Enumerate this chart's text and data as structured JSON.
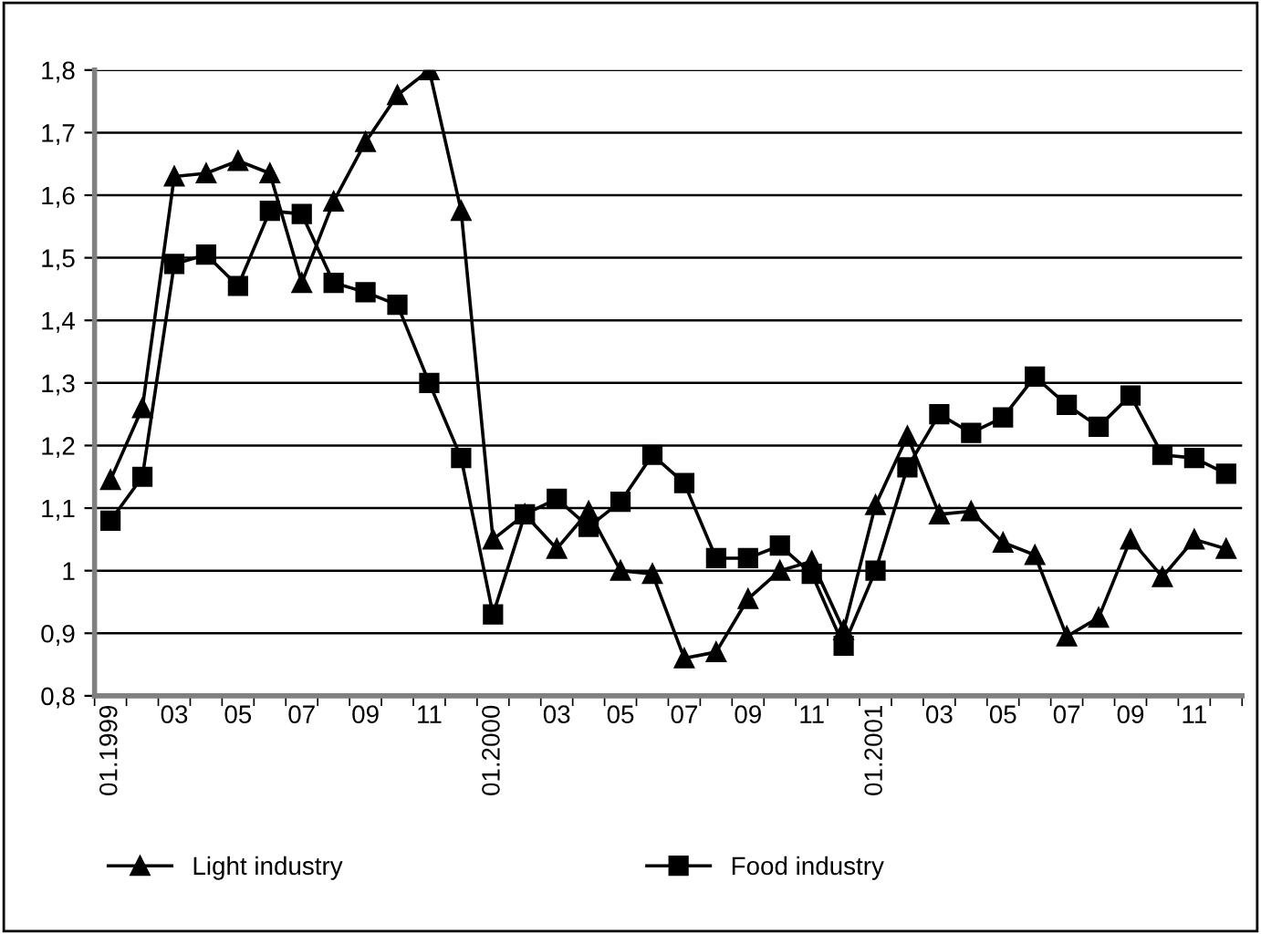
{
  "chart_data": {
    "type": "line",
    "categories": [
      "01.1999",
      null,
      "03",
      null,
      "05",
      null,
      "07",
      null,
      "09",
      null,
      "11",
      null,
      "01.2000",
      null,
      "03",
      null,
      "05",
      null,
      "07",
      null,
      "09",
      null,
      "11",
      null,
      "01.2001",
      null,
      "03",
      null,
      "05",
      null,
      "07",
      null,
      "09",
      null,
      "11",
      null
    ],
    "series": [
      {
        "name": "Light industry",
        "color": "#000000",
        "marker": "triangle",
        "values": [
          1.145,
          1.26,
          1.63,
          1.635,
          1.655,
          1.635,
          1.46,
          1.59,
          1.685,
          1.76,
          1.8,
          1.575,
          1.05,
          1.09,
          1.035,
          1.095,
          1.0,
          0.995,
          0.86,
          0.87,
          0.955,
          1.0,
          1.015,
          0.905,
          1.105,
          1.215,
          1.09,
          1.095,
          1.045,
          1.025,
          0.895,
          0.925,
          1.05,
          0.99,
          1.05,
          1.035
        ]
      },
      {
        "name": "Food industry",
        "color": "#000000",
        "marker": "square",
        "values": [
          1.08,
          1.15,
          1.49,
          1.505,
          1.455,
          1.575,
          1.57,
          1.46,
          1.445,
          1.425,
          1.3,
          1.18,
          0.93,
          1.09,
          1.115,
          1.07,
          1.11,
          1.185,
          1.14,
          1.02,
          1.02,
          1.04,
          0.995,
          0.88,
          1.0,
          1.165,
          1.25,
          1.22,
          1.245,
          1.31,
          1.265,
          1.23,
          1.28,
          1.185,
          1.18,
          1.155
        ]
      }
    ],
    "ylim": [
      0.8,
      1.8
    ],
    "yticks": [
      {
        "value": 0.8,
        "label": "0,8"
      },
      {
        "value": 0.9,
        "label": "0,9"
      },
      1,
      {
        "value": 1.1,
        "label": "1,1"
      },
      {
        "value": 1.2,
        "label": "1,2"
      },
      {
        "value": 1.3,
        "label": "1,3"
      },
      {
        "value": 1.4,
        "label": "1,4"
      },
      {
        "value": 1.5,
        "label": "1,5"
      },
      {
        "value": 1.6,
        "label": "1,6"
      },
      {
        "value": 1.7,
        "label": "1,7"
      },
      {
        "value": 1.8,
        "label": "1,8"
      }
    ],
    "grid": "y",
    "legend": "bottom",
    "line_style": "solid"
  }
}
